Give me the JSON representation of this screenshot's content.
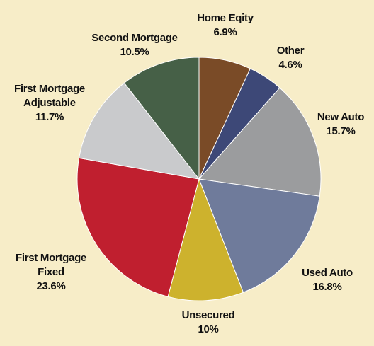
{
  "chart_data": {
    "type": "pie",
    "categories": [
      "Home Eqity",
      "Other",
      "New Auto",
      "Used Auto",
      "Unsecured",
      "First Mortgage Fixed",
      "First Mortgage Adjustable",
      "Second Mortgage"
    ],
    "values": [
      6.9,
      4.6,
      15.7,
      16.8,
      10,
      23.6,
      11.7,
      10.5
    ],
    "value_labels": [
      "6.9%",
      "4.6%",
      "15.7%",
      "16.8%",
      "10%",
      "23.6%",
      "11.7%",
      "10.5%"
    ],
    "colors": [
      "#7a4b27",
      "#3d4877",
      "#9b9c9e",
      "#6f7b9b",
      "#cdb22d",
      "#c01f2f",
      "#c9cacc",
      "#466047"
    ]
  }
}
